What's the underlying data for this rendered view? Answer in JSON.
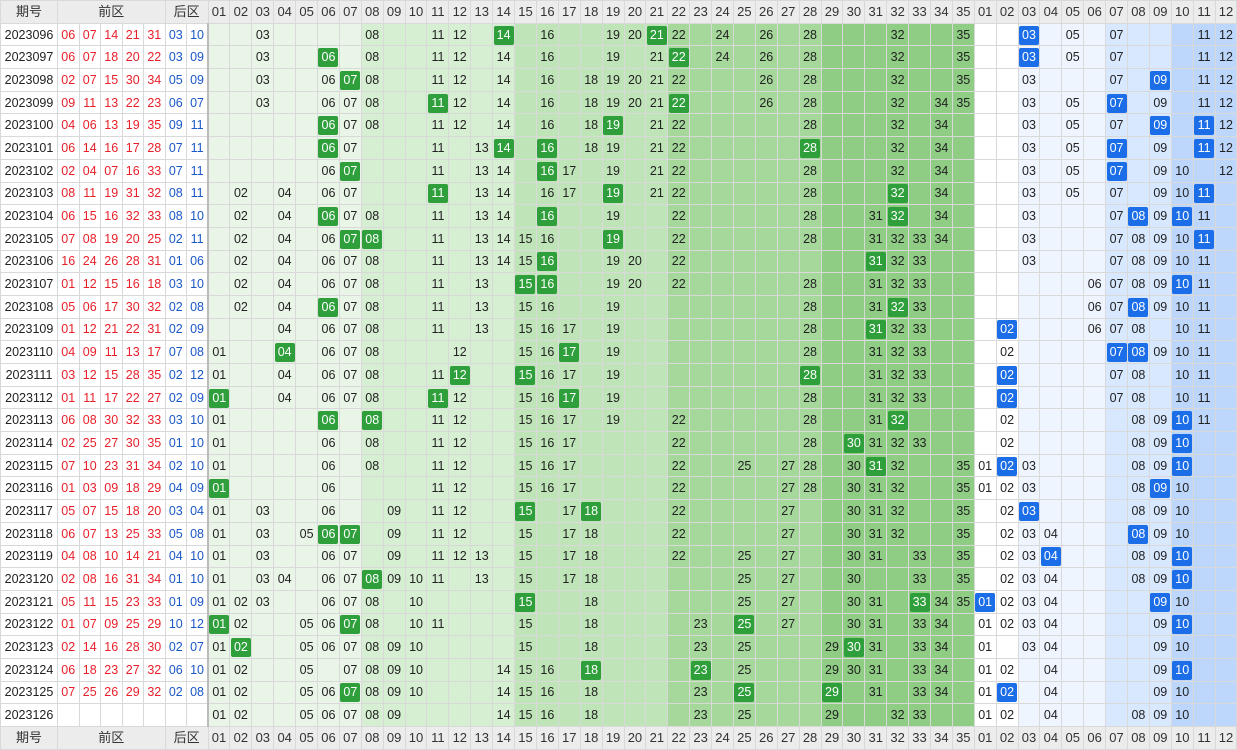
{
  "headers": {
    "issue": "期号",
    "front": "前区",
    "back": "后区",
    "front_nums": [
      "01",
      "02",
      "03",
      "04",
      "05",
      "06",
      "07",
      "08",
      "09",
      "10",
      "11",
      "12",
      "13",
      "14",
      "15",
      "16",
      "17",
      "18",
      "19",
      "20",
      "21",
      "22",
      "23",
      "24",
      "25",
      "26",
      "27",
      "28",
      "29",
      "30",
      "31",
      "32",
      "33",
      "34",
      "35"
    ],
    "back_nums": [
      "01",
      "02",
      "03",
      "04",
      "05",
      "06",
      "07",
      "08",
      "09",
      "10",
      "11",
      "12"
    ]
  },
  "colors": {
    "front_bands": [
      "#e9f5e6",
      "#d6eed1",
      "#bfe4b8",
      "#a6d89c",
      "#8fcc84"
    ],
    "back_bands": [
      "#eef5ff",
      "#d7e8ff",
      "#bcd7fb"
    ],
    "hit_front": "#2e9f3a",
    "hit_back": "#1b6de8",
    "red_text": "#e8202a",
    "blue_text": "#1a57c7"
  },
  "rows": [
    {
      "issue": "2023096",
      "front": [
        "06",
        "07",
        "14",
        "21",
        "31"
      ],
      "back": [
        "03",
        "10"
      ],
      "fshow": [
        "03",
        "08",
        "11",
        "12",
        "14",
        "16",
        "19",
        "20",
        "21",
        "22",
        "24",
        "26",
        "28",
        "32",
        "35"
      ],
      "bshow": [
        "03",
        "05",
        "07",
        "11",
        "12"
      ]
    },
    {
      "issue": "2023097",
      "front": [
        "06",
        "07",
        "18",
        "20",
        "22"
      ],
      "back": [
        "03",
        "09"
      ],
      "fshow": [
        "03",
        "06",
        "08",
        "11",
        "12",
        "14",
        "16",
        "19",
        "21",
        "22",
        "24",
        "26",
        "28",
        "32",
        "35"
      ],
      "bshow": [
        "03",
        "05",
        "07",
        "11",
        "12"
      ]
    },
    {
      "issue": "2023098",
      "front": [
        "02",
        "07",
        "15",
        "30",
        "34"
      ],
      "back": [
        "05",
        "09"
      ],
      "fshow": [
        "03",
        "06",
        "07",
        "08",
        "11",
        "12",
        "14",
        "16",
        "18",
        "19",
        "20",
        "21",
        "22",
        "26",
        "28",
        "32",
        "35"
      ],
      "bshow": [
        "03",
        "07",
        "09",
        "11",
        "12"
      ]
    },
    {
      "issue": "2023099",
      "front": [
        "09",
        "11",
        "13",
        "22",
        "23"
      ],
      "back": [
        "06",
        "07"
      ],
      "fshow": [
        "03",
        "06",
        "07",
        "08",
        "11",
        "12",
        "14",
        "16",
        "18",
        "19",
        "20",
        "21",
        "22",
        "26",
        "28",
        "32",
        "34",
        "35"
      ],
      "bshow": [
        "03",
        "05",
        "07",
        "09",
        "11",
        "12"
      ]
    },
    {
      "issue": "2023100",
      "front": [
        "04",
        "06",
        "13",
        "19",
        "35"
      ],
      "back": [
        "09",
        "11"
      ],
      "fshow": [
        "06",
        "07",
        "08",
        "11",
        "12",
        "14",
        "16",
        "18",
        "19",
        "21",
        "22",
        "28",
        "32",
        "34"
      ],
      "bshow": [
        "03",
        "05",
        "07",
        "09",
        "11",
        "12"
      ]
    },
    {
      "issue": "2023101",
      "front": [
        "06",
        "14",
        "16",
        "17",
        "28"
      ],
      "back": [
        "07",
        "11"
      ],
      "fshow": [
        "06",
        "07",
        "11",
        "13",
        "14",
        "16",
        "18",
        "19",
        "21",
        "22",
        "28",
        "32",
        "34"
      ],
      "bshow": [
        "03",
        "05",
        "07",
        "09",
        "11",
        "12"
      ]
    },
    {
      "issue": "2023102",
      "front": [
        "02",
        "04",
        "07",
        "16",
        "33"
      ],
      "back": [
        "07",
        "11"
      ],
      "fshow": [
        "06",
        "07",
        "11",
        "13",
        "14",
        "16",
        "17",
        "19",
        "21",
        "22",
        "28",
        "32",
        "34"
      ],
      "bshow": [
        "03",
        "05",
        "07",
        "09",
        "10",
        "12"
      ]
    },
    {
      "issue": "2023103",
      "front": [
        "08",
        "11",
        "19",
        "31",
        "32"
      ],
      "back": [
        "08",
        "11"
      ],
      "fshow": [
        "02",
        "04",
        "06",
        "07",
        "11",
        "13",
        "14",
        "16",
        "17",
        "19",
        "21",
        "22",
        "28",
        "32",
        "34"
      ],
      "bshow": [
        "03",
        "05",
        "07",
        "09",
        "10",
        "11"
      ]
    },
    {
      "issue": "2023104",
      "front": [
        "06",
        "15",
        "16",
        "32",
        "33"
      ],
      "back": [
        "08",
        "10"
      ],
      "fshow": [
        "02",
        "04",
        "06",
        "07",
        "08",
        "11",
        "13",
        "14",
        "16",
        "19",
        "22",
        "28",
        "31",
        "32",
        "34"
      ],
      "bshow": [
        "03",
        "07",
        "08",
        "09",
        "10",
        "11"
      ]
    },
    {
      "issue": "2023105",
      "front": [
        "07",
        "08",
        "19",
        "20",
        "25"
      ],
      "back": [
        "02",
        "11"
      ],
      "fshow": [
        "02",
        "04",
        "06",
        "07",
        "08",
        "11",
        "13",
        "14",
        "15",
        "16",
        "19",
        "22",
        "28",
        "31",
        "32",
        "33",
        "34"
      ],
      "bshow": [
        "03",
        "07",
        "08",
        "09",
        "10",
        "11"
      ]
    },
    {
      "issue": "2023106",
      "front": [
        "16",
        "24",
        "26",
        "28",
        "31"
      ],
      "back": [
        "01",
        "06"
      ],
      "fshow": [
        "02",
        "04",
        "06",
        "07",
        "08",
        "11",
        "13",
        "14",
        "15",
        "16",
        "19",
        "20",
        "22",
        "31",
        "32",
        "33"
      ],
      "bshow": [
        "03",
        "07",
        "08",
        "09",
        "10",
        "11"
      ]
    },
    {
      "issue": "2023107",
      "front": [
        "01",
        "12",
        "15",
        "16",
        "18"
      ],
      "back": [
        "03",
        "10"
      ],
      "fshow": [
        "02",
        "04",
        "06",
        "07",
        "08",
        "11",
        "13",
        "15",
        "16",
        "19",
        "20",
        "22",
        "28",
        "31",
        "32",
        "33"
      ],
      "bshow": [
        "06",
        "07",
        "08",
        "09",
        "10",
        "11"
      ]
    },
    {
      "issue": "2023108",
      "front": [
        "05",
        "06",
        "17",
        "30",
        "32"
      ],
      "back": [
        "02",
        "08"
      ],
      "fshow": [
        "02",
        "04",
        "06",
        "07",
        "08",
        "11",
        "13",
        "15",
        "16",
        "19",
        "28",
        "31",
        "32",
        "33"
      ],
      "bshow": [
        "06",
        "07",
        "08",
        "09",
        "10",
        "11"
      ]
    },
    {
      "issue": "2023109",
      "front": [
        "01",
        "12",
        "21",
        "22",
        "31"
      ],
      "back": [
        "02",
        "09"
      ],
      "fshow": [
        "04",
        "06",
        "07",
        "08",
        "11",
        "13",
        "15",
        "16",
        "17",
        "19",
        "28",
        "31",
        "32",
        "33"
      ],
      "bshow": [
        "02",
        "06",
        "07",
        "08",
        "10",
        "11"
      ]
    },
    {
      "issue": "2023110",
      "front": [
        "04",
        "09",
        "11",
        "13",
        "17"
      ],
      "back": [
        "07",
        "08"
      ],
      "fshow": [
        "01",
        "04",
        "06",
        "07",
        "08",
        "12",
        "15",
        "16",
        "17",
        "19",
        "28",
        "31",
        "32",
        "33"
      ],
      "bshow": [
        "02",
        "07",
        "08",
        "09",
        "10",
        "11"
      ]
    },
    {
      "issue": "2023111",
      "front": [
        "03",
        "12",
        "15",
        "28",
        "35"
      ],
      "back": [
        "02",
        "12"
      ],
      "fshow": [
        "01",
        "04",
        "06",
        "07",
        "08",
        "11",
        "12",
        "15",
        "16",
        "17",
        "19",
        "28",
        "31",
        "32",
        "33"
      ],
      "bshow": [
        "02",
        "07",
        "08",
        "10",
        "11"
      ]
    },
    {
      "issue": "2023112",
      "front": [
        "01",
        "11",
        "17",
        "22",
        "27"
      ],
      "back": [
        "02",
        "09"
      ],
      "fshow": [
        "01",
        "04",
        "06",
        "07",
        "08",
        "11",
        "12",
        "15",
        "16",
        "17",
        "19",
        "28",
        "31",
        "32",
        "33"
      ],
      "bshow": [
        "02",
        "07",
        "08",
        "10",
        "11"
      ]
    },
    {
      "issue": "2023113",
      "front": [
        "06",
        "08",
        "30",
        "32",
        "33"
      ],
      "back": [
        "03",
        "10"
      ],
      "fshow": [
        "01",
        "06",
        "08",
        "11",
        "12",
        "15",
        "16",
        "17",
        "19",
        "22",
        "28",
        "31",
        "32"
      ],
      "bshow": [
        "02",
        "08",
        "09",
        "10",
        "11"
      ]
    },
    {
      "issue": "2023114",
      "front": [
        "02",
        "25",
        "27",
        "30",
        "35"
      ],
      "back": [
        "01",
        "10"
      ],
      "fshow": [
        "01",
        "06",
        "08",
        "11",
        "12",
        "15",
        "16",
        "17",
        "22",
        "28",
        "30",
        "31",
        "32",
        "33"
      ],
      "bshow": [
        "02",
        "08",
        "09",
        "10"
      ]
    },
    {
      "issue": "2023115",
      "front": [
        "07",
        "10",
        "23",
        "31",
        "34"
      ],
      "back": [
        "02",
        "10"
      ],
      "fshow": [
        "01",
        "06",
        "08",
        "11",
        "12",
        "15",
        "16",
        "17",
        "22",
        "25",
        "27",
        "28",
        "30",
        "31",
        "32",
        "35"
      ],
      "bshow": [
        "01",
        "02",
        "03",
        "08",
        "09",
        "10"
      ]
    },
    {
      "issue": "2023116",
      "front": [
        "01",
        "03",
        "09",
        "18",
        "29"
      ],
      "back": [
        "04",
        "09"
      ],
      "fshow": [
        "01",
        "06",
        "11",
        "12",
        "15",
        "16",
        "17",
        "22",
        "27",
        "28",
        "30",
        "31",
        "32",
        "35"
      ],
      "bshow": [
        "01",
        "02",
        "03",
        "08",
        "09",
        "10"
      ]
    },
    {
      "issue": "2023117",
      "front": [
        "05",
        "07",
        "15",
        "18",
        "20"
      ],
      "back": [
        "03",
        "04"
      ],
      "fshow": [
        "01",
        "03",
        "06",
        "09",
        "11",
        "12",
        "15",
        "17",
        "18",
        "22",
        "27",
        "30",
        "31",
        "32",
        "35"
      ],
      "bshow": [
        "02",
        "03",
        "08",
        "09",
        "10"
      ]
    },
    {
      "issue": "2023118",
      "front": [
        "06",
        "07",
        "13",
        "25",
        "33"
      ],
      "back": [
        "05",
        "08"
      ],
      "fshow": [
        "01",
        "03",
        "05",
        "06",
        "07",
        "09",
        "11",
        "12",
        "15",
        "17",
        "18",
        "22",
        "27",
        "30",
        "31",
        "32",
        "35"
      ],
      "bshow": [
        "02",
        "03",
        "04",
        "08",
        "09",
        "10"
      ]
    },
    {
      "issue": "2023119",
      "front": [
        "04",
        "08",
        "10",
        "14",
        "21"
      ],
      "back": [
        "04",
        "10"
      ],
      "fshow": [
        "01",
        "03",
        "06",
        "07",
        "09",
        "11",
        "12",
        "13",
        "15",
        "17",
        "18",
        "22",
        "25",
        "27",
        "30",
        "31",
        "33",
        "35"
      ],
      "bshow": [
        "02",
        "03",
        "04",
        "08",
        "09",
        "10"
      ]
    },
    {
      "issue": "2023120",
      "front": [
        "02",
        "08",
        "16",
        "31",
        "34"
      ],
      "back": [
        "01",
        "10"
      ],
      "fshow": [
        "01",
        "03",
        "04",
        "06",
        "07",
        "08",
        "09",
        "10",
        "11",
        "13",
        "15",
        "17",
        "18",
        "25",
        "27",
        "30",
        "33",
        "35"
      ],
      "bshow": [
        "02",
        "03",
        "04",
        "08",
        "09",
        "10"
      ]
    },
    {
      "issue": "2023121",
      "front": [
        "05",
        "11",
        "15",
        "23",
        "33"
      ],
      "back": [
        "01",
        "09"
      ],
      "fshow": [
        "01",
        "02",
        "03",
        "06",
        "07",
        "08",
        "10",
        "15",
        "18",
        "25",
        "27",
        "30",
        "31",
        "33",
        "34",
        "35"
      ],
      "bshow": [
        "01",
        "02",
        "03",
        "04",
        "09",
        "10"
      ]
    },
    {
      "issue": "2023122",
      "front": [
        "01",
        "07",
        "09",
        "25",
        "29"
      ],
      "back": [
        "10",
        "12"
      ],
      "fshow": [
        "01",
        "02",
        "05",
        "06",
        "07",
        "08",
        "10",
        "11",
        "15",
        "18",
        "23",
        "25",
        "27",
        "30",
        "31",
        "33",
        "34"
      ],
      "bshow": [
        "01",
        "02",
        "03",
        "04",
        "09",
        "10"
      ]
    },
    {
      "issue": "2023123",
      "front": [
        "02",
        "14",
        "16",
        "28",
        "30"
      ],
      "back": [
        "02",
        "07"
      ],
      "fshow": [
        "01",
        "02",
        "05",
        "06",
        "07",
        "08",
        "09",
        "10",
        "15",
        "18",
        "23",
        "25",
        "29",
        "30",
        "31",
        "33",
        "34"
      ],
      "bshow": [
        "01",
        "03",
        "04",
        "09",
        "10"
      ]
    },
    {
      "issue": "2023124",
      "front": [
        "06",
        "18",
        "23",
        "27",
        "32"
      ],
      "back": [
        "06",
        "10"
      ],
      "fshow": [
        "01",
        "02",
        "05",
        "07",
        "08",
        "09",
        "10",
        "14",
        "15",
        "16",
        "18",
        "23",
        "25",
        "29",
        "30",
        "31",
        "33",
        "34"
      ],
      "bshow": [
        "01",
        "02",
        "04",
        "09",
        "10"
      ]
    },
    {
      "issue": "2023125",
      "front": [
        "07",
        "25",
        "26",
        "29",
        "32"
      ],
      "back": [
        "02",
        "08"
      ],
      "fshow": [
        "01",
        "02",
        "05",
        "06",
        "07",
        "08",
        "09",
        "10",
        "14",
        "15",
        "16",
        "18",
        "23",
        "25",
        "29",
        "31",
        "33",
        "34"
      ],
      "bshow": [
        "01",
        "02",
        "04",
        "09",
        "10"
      ]
    },
    {
      "issue": "2023126",
      "front": [],
      "back": [],
      "fshow": [
        "01",
        "02",
        "05",
        "06",
        "07",
        "08",
        "09",
        "14",
        "15",
        "16",
        "18",
        "23",
        "25",
        "29",
        "32",
        "33"
      ],
      "bshow": [
        "01",
        "02",
        "04",
        "08",
        "09",
        "10"
      ]
    }
  ]
}
